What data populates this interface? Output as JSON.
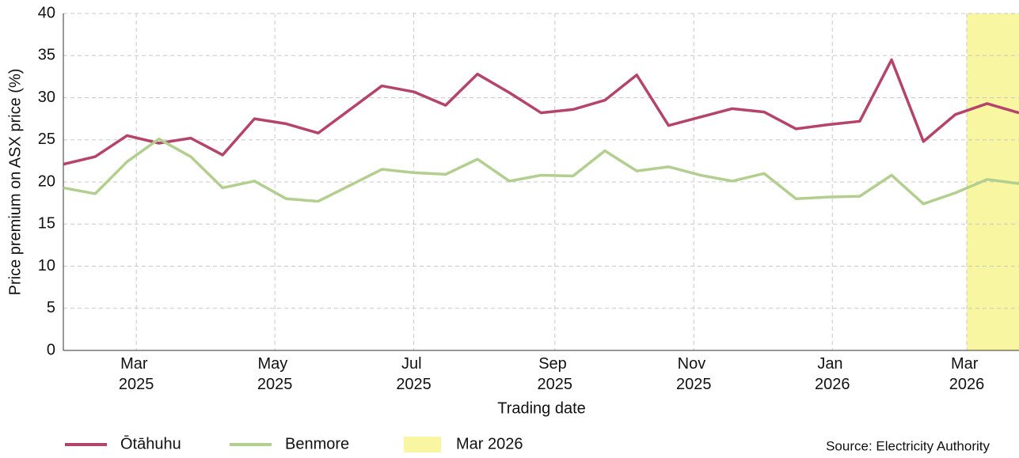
{
  "chart_data": {
    "type": "line",
    "x_label": "Trading date",
    "y_label": "Price premium on ASX price (%)",
    "source": "Source: Electricity Authority",
    "categories": [
      null,
      null,
      null,
      null,
      null,
      null,
      null,
      null,
      null,
      null,
      null,
      null,
      null,
      null,
      null,
      null,
      null,
      null,
      null,
      null,
      null,
      null,
      null,
      null,
      null,
      null,
      null,
      null,
      null,
      null,
      null
    ],
    "series": [
      {
        "name": "Ōtāhuhu",
        "color": "#b5446a",
        "values": [
          22.1,
          23.0,
          25.5,
          24.6,
          25.2,
          23.2,
          27.5,
          26.9,
          25.8,
          28.6,
          31.4,
          30.7,
          29.1,
          32.8,
          30.6,
          28.2,
          28.6,
          29.7,
          32.7,
          26.7,
          27.7,
          28.7,
          28.3,
          26.3,
          26.8,
          27.2,
          34.5,
          24.8,
          28.0,
          29.3,
          28.2
        ]
      },
      {
        "name": "Benmore",
        "color": "#b3cf8f",
        "values": [
          19.3,
          18.6,
          22.4,
          25.1,
          23.0,
          19.3,
          20.1,
          18.0,
          17.7,
          19.6,
          21.5,
          21.1,
          20.9,
          22.7,
          20.1,
          20.8,
          20.7,
          23.7,
          21.3,
          21.8,
          20.8,
          20.1,
          21.0,
          18.0,
          18.2,
          18.3,
          20.8,
          17.4,
          18.7,
          20.3,
          19.8
        ]
      }
    ],
    "highlight": {
      "label": "Mar 2026",
      "range": [
        28.36,
        30
      ],
      "color": "#f8f6a0"
    },
    "xlim": [
      0,
      30
    ],
    "xticks": [
      {
        "value": 2.29,
        "label": "Mar 2025"
      },
      {
        "value": 6.64,
        "label": "May 2025"
      },
      {
        "value": 11.0,
        "label": "Jul 2025"
      },
      {
        "value": 15.43,
        "label": "Sep 2025"
      },
      {
        "value": 19.79,
        "label": "Nov 2025"
      },
      {
        "value": 24.14,
        "label": "Jan 2026"
      },
      {
        "value": 28.36,
        "label": "Mar 2026"
      }
    ],
    "ylim": [
      0,
      40
    ],
    "yticks": [
      0,
      5,
      10,
      15,
      20,
      25,
      30,
      35,
      40
    ],
    "grid": true
  }
}
